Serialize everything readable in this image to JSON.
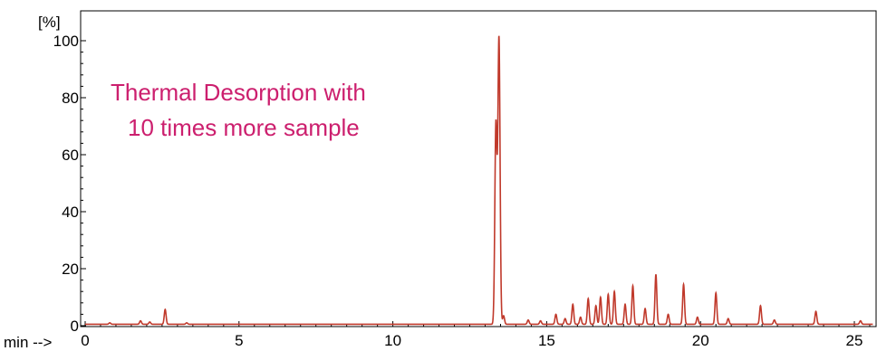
{
  "chart_data": {
    "type": "line",
    "ylabel": "[%]",
    "xlabel": "min -->",
    "annotation": [
      "Thermal Desorption with",
      "10 times more sample"
    ],
    "xlim": [
      0,
      25.6
    ],
    "ylim": [
      0,
      105
    ],
    "x_ticks": [
      "0",
      "5",
      "10",
      "15",
      "20",
      "25"
    ],
    "y_ticks": [
      "0",
      "20",
      "40",
      "60",
      "80",
      "100"
    ],
    "series_color": "#c0392b",
    "annotation_color": "#cc1f6e",
    "baseline": 0.5,
    "peaks": [
      {
        "t": 0.8,
        "h": 0.5
      },
      {
        "t": 1.8,
        "h": 1.2
      },
      {
        "t": 2.1,
        "h": 0.8
      },
      {
        "t": 2.6,
        "h": 5.2
      },
      {
        "t": 3.3,
        "h": 0.5
      },
      {
        "t": 13.35,
        "h": 70
      },
      {
        "t": 13.45,
        "h": 100
      },
      {
        "t": 13.6,
        "h": 3
      },
      {
        "t": 14.4,
        "h": 1.5
      },
      {
        "t": 14.8,
        "h": 1.2
      },
      {
        "t": 15.3,
        "h": 3.5
      },
      {
        "t": 15.6,
        "h": 2
      },
      {
        "t": 15.85,
        "h": 7
      },
      {
        "t": 16.1,
        "h": 2.5
      },
      {
        "t": 16.35,
        "h": 9
      },
      {
        "t": 16.6,
        "h": 6.5
      },
      {
        "t": 16.75,
        "h": 9.5
      },
      {
        "t": 17.0,
        "h": 10.5
      },
      {
        "t": 17.2,
        "h": 11.5
      },
      {
        "t": 17.55,
        "h": 7
      },
      {
        "t": 17.8,
        "h": 13.5
      },
      {
        "t": 18.2,
        "h": 5.5
      },
      {
        "t": 18.55,
        "h": 17.5
      },
      {
        "t": 18.95,
        "h": 3.5
      },
      {
        "t": 19.45,
        "h": 14
      },
      {
        "t": 19.9,
        "h": 2.5
      },
      {
        "t": 20.5,
        "h": 11
      },
      {
        "t": 20.9,
        "h": 2
      },
      {
        "t": 21.95,
        "h": 6.5
      },
      {
        "t": 22.4,
        "h": 1.5
      },
      {
        "t": 23.75,
        "h": 4.5
      },
      {
        "t": 25.2,
        "h": 1.2
      }
    ]
  }
}
